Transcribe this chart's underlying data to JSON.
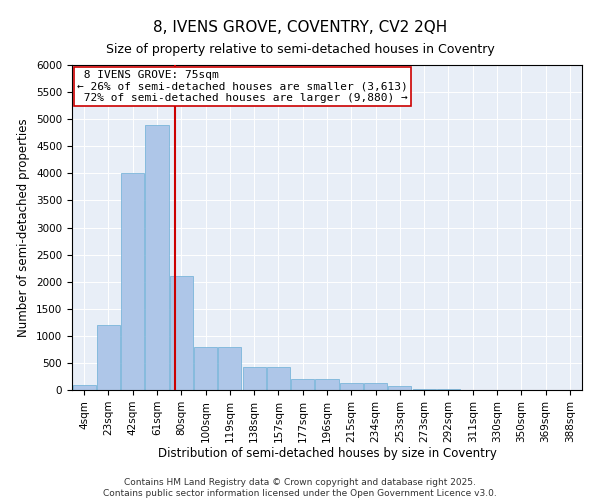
{
  "title_line1": "8, IVENS GROVE, COVENTRY, CV2 2QH",
  "title_line2": "Size of property relative to semi-detached houses in Coventry",
  "xlabel": "Distribution of semi-detached houses by size in Coventry",
  "ylabel": "Number of semi-detached properties",
  "property_size_idx": 3.7,
  "property_label": "8 IVENS GROVE: 75sqm",
  "pct_smaller": 26,
  "pct_smaller_n": "3,613",
  "pct_larger": 72,
  "pct_larger_n": "9,880",
  "bin_labels": [
    "4sqm",
    "23sqm",
    "42sqm",
    "61sqm",
    "80sqm",
    "100sqm",
    "119sqm",
    "138sqm",
    "157sqm",
    "177sqm",
    "196sqm",
    "215sqm",
    "234sqm",
    "253sqm",
    "273sqm",
    "292sqm",
    "311sqm",
    "330sqm",
    "350sqm",
    "369sqm",
    "388sqm"
  ],
  "bar_heights": [
    100,
    1200,
    4000,
    4900,
    2100,
    800,
    800,
    420,
    420,
    200,
    200,
    130,
    130,
    80,
    10,
    10,
    5,
    5,
    2,
    2,
    0
  ],
  "bar_color": "#aec6e8",
  "bar_edge_color": "#6baed6",
  "vline_color": "#cc0000",
  "box_edge_color": "#cc0000",
  "background_color": "#e8eef7",
  "ylim": [
    0,
    6000
  ],
  "yticks": [
    0,
    500,
    1000,
    1500,
    2000,
    2500,
    3000,
    3500,
    4000,
    4500,
    5000,
    5500,
    6000
  ],
  "footer_line1": "Contains HM Land Registry data © Crown copyright and database right 2025.",
  "footer_line2": "Contains public sector information licensed under the Open Government Licence v3.0.",
  "title_fontsize": 11,
  "subtitle_fontsize": 9,
  "axis_label_fontsize": 8.5,
  "tick_fontsize": 7.5,
  "annotation_fontsize": 8,
  "footer_fontsize": 6.5
}
